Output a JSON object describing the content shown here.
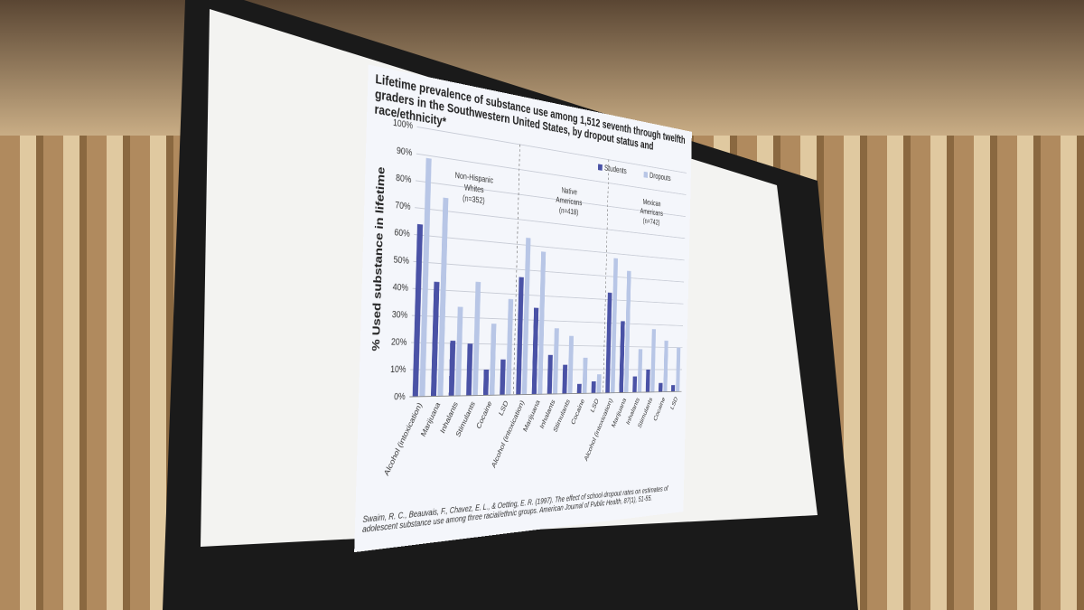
{
  "chart_data": {
    "type": "bar",
    "title": "Lifetime prevalence of substance use among 1,512 seventh through twelfth graders in the Southwestern United States, by dropout status and race/ethnicity*",
    "y_label": "% Used substance in lifetime",
    "categories": [
      "Alcohol (intoxication)",
      "Marijuana",
      "Inhalants",
      "Stimulants",
      "Cocaine",
      "LSD",
      "Alcohol (intoxication)",
      "Marijuana",
      "Inhalants",
      "Stimulants",
      "Cocaine",
      "LSD",
      "Alcohol (intoxication)",
      "Marijuana",
      "Inhalants",
      "Stimulants",
      "Cocaine",
      "LSD"
    ],
    "groups": [
      [
        "Non-Hispanic",
        "Whites",
        "(n=352)"
      ],
      [
        "Native",
        "Americans",
        "(n=418)"
      ],
      [
        "Mexican",
        "Americans",
        "(n=742)"
      ]
    ],
    "series": [
      {
        "name": "Students",
        "color": "#4a52a6",
        "values": [
          64,
          43,
          21,
          20,
          10,
          14,
          47,
          35,
          16,
          12,
          4,
          5,
          43,
          31,
          7,
          10,
          4,
          3
        ]
      },
      {
        "name": "Dropouts",
        "color": "#b8c6e6",
        "values": [
          89,
          75,
          34,
          44,
          28,
          38,
          63,
          58,
          27,
          24,
          15,
          8,
          58,
          53,
          19,
          28,
          23,
          20
        ]
      }
    ],
    "ylim": [
      0,
      100
    ],
    "yticks": [
      {
        "value": 0,
        "label": "0%"
      },
      {
        "value": 10,
        "label": "10%"
      },
      {
        "value": 20,
        "label": "20%"
      },
      {
        "value": 30,
        "label": "30%"
      },
      {
        "value": 40,
        "label": "40%"
      },
      {
        "value": 50,
        "label": "50%"
      },
      {
        "value": 60,
        "label": "60%"
      },
      {
        "value": 70,
        "label": "70%"
      },
      {
        "value": 80,
        "label": "80%"
      },
      {
        "value": 90,
        "label": "90%"
      },
      {
        "value": 100,
        "label": "100%"
      }
    ],
    "grid": true,
    "legend": "top-right"
  },
  "citation": "Swaim, R. C., Beauvais, F., Chavez, E. L., & Oetting, E. R. (1997). The effect of school dropout rates on estimates of adolescent substance use among three racial/ethnic groups. American Journal of Public Health, 87(1), 51-55."
}
